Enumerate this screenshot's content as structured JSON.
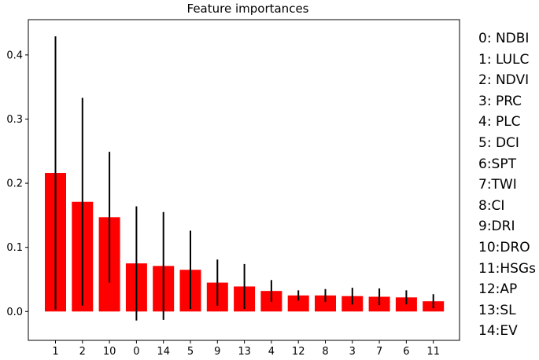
{
  "chart_data": {
    "type": "bar",
    "title": "Feature importances",
    "xlabel": "",
    "ylabel": "",
    "categories": [
      "1",
      "2",
      "10",
      "0",
      "14",
      "5",
      "9",
      "13",
      "4",
      "12",
      "8",
      "3",
      "7",
      "6",
      "11"
    ],
    "values": [
      0.216,
      0.171,
      0.147,
      0.075,
      0.071,
      0.065,
      0.045,
      0.039,
      0.032,
      0.025,
      0.025,
      0.024,
      0.023,
      0.022,
      0.016
    ],
    "error": [
      0.213,
      0.162,
      0.102,
      0.089,
      0.084,
      0.061,
      0.036,
      0.035,
      0.017,
      0.008,
      0.01,
      0.013,
      0.013,
      0.011,
      0.011
    ],
    "ylim": [
      -0.045,
      0.455
    ],
    "yticks": [
      0.0,
      0.1,
      0.2,
      0.3,
      0.4
    ],
    "ytick_labels": [
      "0.0",
      "0.1",
      "0.2",
      "0.3",
      "0.4"
    ],
    "bar_color": "#ff0000",
    "error_color": "#000000",
    "grid": false,
    "legend_entries": [
      "0: NDBI",
      "1: LULC",
      "2: NDVI",
      "3: PRC",
      "4: PLC",
      "5: DCI",
      "6:SPT",
      "7:TWI",
      "8:CI",
      "9:DRI",
      "10:DRO",
      "11:HSGs",
      "12:AP",
      "13:SL",
      "14:EV"
    ],
    "legend_placement": "right"
  }
}
